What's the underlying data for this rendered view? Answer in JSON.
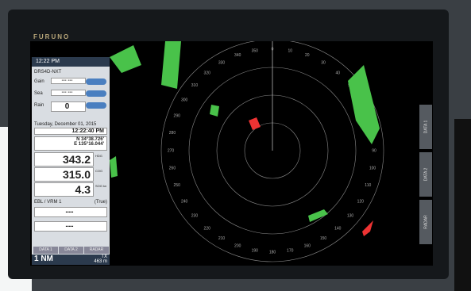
{
  "brand": "FURUNO",
  "panel": {
    "time": "12:22 PM",
    "close": "×",
    "radar_name": "DRS4D-NXT",
    "controls": [
      {
        "label": "Gain",
        "value": "--- ---"
      },
      {
        "label": "Sea",
        "value": "--- ---"
      },
      {
        "label": "Rain",
        "value": "0"
      }
    ],
    "date": "Tuesday, December 01, 2015",
    "clock": "12:22:40 PM",
    "lat": "N 34°38.726'",
    "lon": "E 135°16.044'",
    "readouts": [
      {
        "value": "343.2",
        "unit": "HDG"
      },
      {
        "value": "315.0",
        "unit": "COG"
      },
      {
        "value": "4.3",
        "unit": "SOG kn"
      }
    ],
    "ebl_title": "EBL / VRM 1",
    "ebl_mode": "(True)",
    "ebl_values": [
      "---",
      "---"
    ],
    "tabs": [
      "DATA 1",
      "DATA 2",
      "RADAR"
    ],
    "range": "1 NM",
    "range_sub": "TX",
    "range_m": "463 m"
  },
  "side_tabs": [
    "DATA 1",
    "DATA 2",
    "RADAR"
  ],
  "bearings": [
    "0",
    "10",
    "20",
    "30",
    "40",
    "50",
    "60",
    "70",
    "80",
    "90",
    "100",
    "110",
    "120",
    "130",
    "140",
    "150",
    "160",
    "170",
    "180",
    "190",
    "200",
    "210",
    "220",
    "230",
    "240",
    "250",
    "260",
    "270",
    "280",
    "290",
    "300",
    "310",
    "320",
    "330",
    "340",
    "350"
  ]
}
